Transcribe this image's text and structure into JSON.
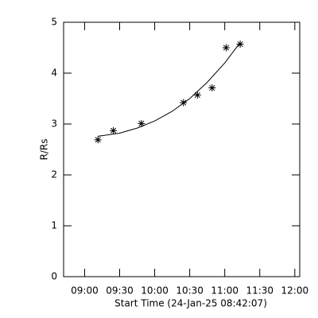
{
  "chart_data": {
    "type": "scatter",
    "xlabel": "Start Time (24-Jan-25 08:42:07)",
    "ylabel": "R/Rs",
    "xlim": [
      8.7,
      12.07
    ],
    "ylim": [
      0,
      5
    ],
    "xticks": [
      {
        "value": 9,
        "label": "09:00"
      },
      {
        "value": 9.5,
        "label": "09:30"
      },
      {
        "value": 10,
        "label": "10:00"
      },
      {
        "value": 10.5,
        "label": "10:30"
      },
      {
        "value": 11,
        "label": "11:00"
      },
      {
        "value": 11.5,
        "label": "11:30"
      },
      {
        "value": 12,
        "label": "12:00"
      }
    ],
    "yticks": [
      0,
      1,
      2,
      3,
      4,
      5
    ],
    "series": [
      {
        "mode": "markers",
        "color": "#000000",
        "x": [
          9.19,
          9.41,
          9.81,
          10.41,
          10.61,
          10.82,
          11.02,
          11.22
        ],
        "values": [
          2.69,
          2.87,
          3.01,
          3.42,
          3.57,
          3.71,
          4.5,
          4.57
        ]
      },
      {
        "mode": "line",
        "color": "#000000",
        "x": [
          9.19,
          9.5,
          9.75,
          10.0,
          10.25,
          10.5,
          10.75,
          11.0,
          11.22
        ],
        "values": [
          2.76,
          2.82,
          2.92,
          3.06,
          3.25,
          3.5,
          3.82,
          4.2,
          4.6
        ]
      }
    ]
  }
}
